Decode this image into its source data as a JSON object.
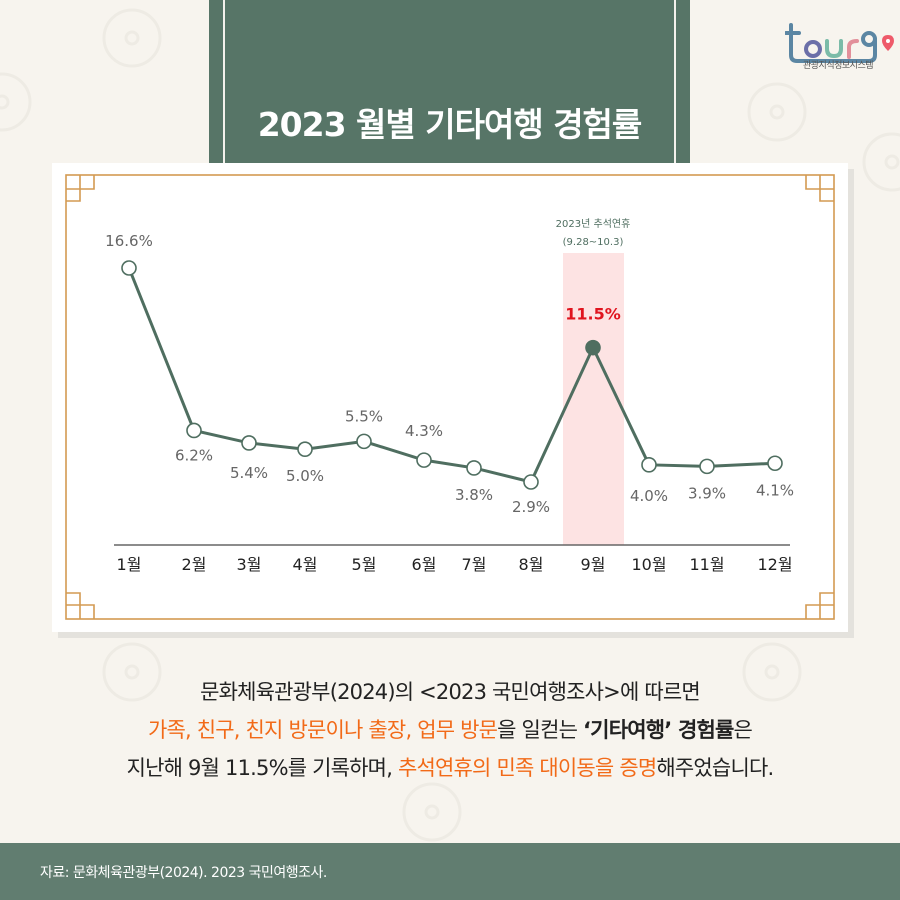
{
  "header": {
    "title": "2023 월별 기타여행 경험률"
  },
  "logo": {
    "brand": "tour9",
    "subtitle": "관광지식정보시스템"
  },
  "chart_data": {
    "type": "line",
    "title": "2023 월별 기타여행 경험률",
    "categories": [
      "1월",
      "2월",
      "3월",
      "4월",
      "5월",
      "6월",
      "7월",
      "8월",
      "9월",
      "10월",
      "11월",
      "12월"
    ],
    "values": [
      16.6,
      6.2,
      5.4,
      5.0,
      5.5,
      4.3,
      3.8,
      2.9,
      11.5,
      4.0,
      3.9,
      4.1
    ],
    "labels": [
      "16.6%",
      "6.2%",
      "5.4%",
      "5.0%",
      "5.5%",
      "4.3%",
      "3.8%",
      "2.9%",
      "11.5%",
      "4.0%",
      "3.9%",
      "4.1%"
    ],
    "unit": "%",
    "xlabel": "",
    "ylabel": "",
    "grid": false,
    "highlight": {
      "category": "9월",
      "annotation_line1": "2023년 추석연휴",
      "annotation_line2": "(9.28~10.3)",
      "band_color": "#fde3e3",
      "label_color": "#e0141e"
    },
    "colors": {
      "line": "#4f6e60",
      "marker_fill": "#ffffff",
      "highlight_marker": "#4f6e60",
      "label": "#666666",
      "frame": "#d39a52"
    }
  },
  "description": {
    "line1": "문화체육관광부(2024)의 <2023 국민여행조사>에 따르면",
    "line2_hl": "가족, 친구, 친지 방문이나 출장, 업무 방문",
    "line2_mid": "을 일컫는 ",
    "line2_bold": "‘기타여행’ 경험률",
    "line2_end": "은",
    "line3_start": "지난해 9월 11.5%를 기록하며, ",
    "line3_hl": "추석연휴의 민족 대이동을 증명",
    "line3_end": "해주었습니다."
  },
  "footer": {
    "source": "자료: 문화체육관광부(2024). 2023 국민여행조사."
  }
}
